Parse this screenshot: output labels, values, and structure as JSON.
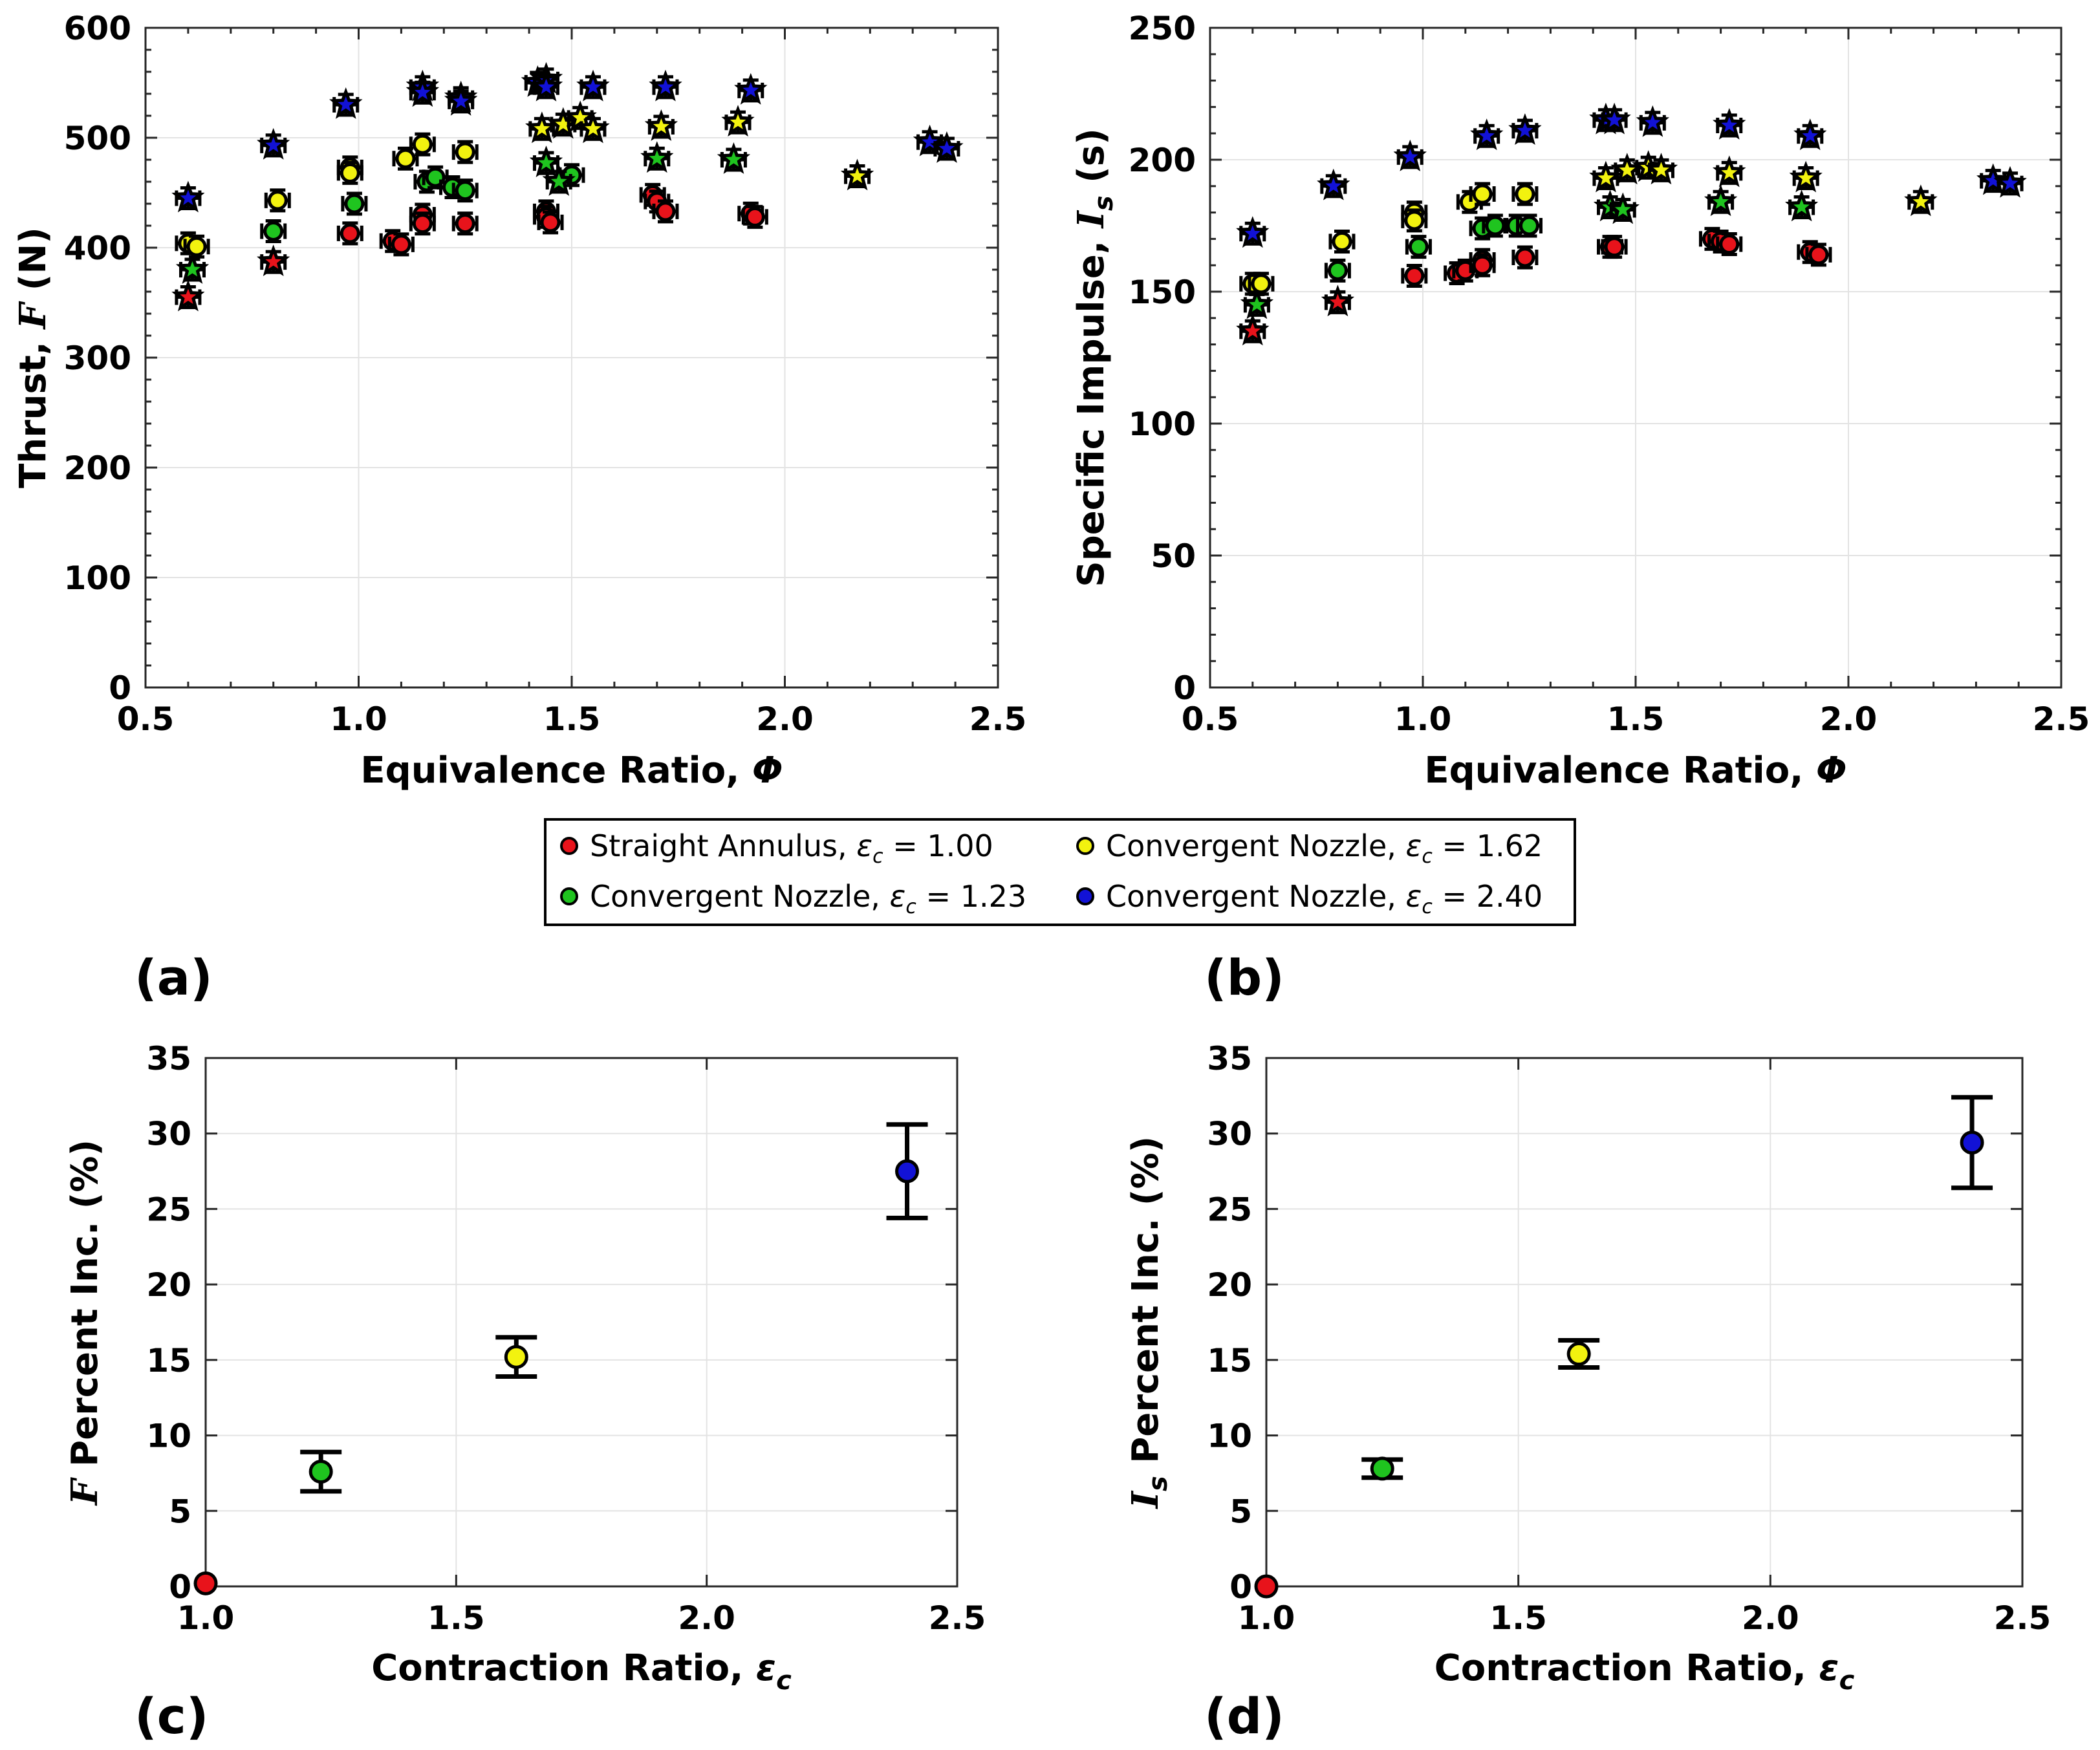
{
  "colors": {
    "straight": "#e8131b",
    "conv123": "#1fc41f",
    "conv162": "#f2f20f",
    "conv240": "#1212d6"
  },
  "legend": {
    "items": [
      {
        "key": "straight",
        "label": "Straight Annulus, ",
        "sym": "ε",
        "sub": "c",
        "value": " = 1.00"
      },
      {
        "key": "conv162",
        "label": "Convergent Nozzle, ",
        "sym": "ε",
        "sub": "c",
        "value": " = 1.62"
      },
      {
        "key": "conv123",
        "label": "Convergent Nozzle, ",
        "sym": "ε",
        "sub": "c",
        "value": " = 1.23"
      },
      {
        "key": "conv240",
        "label": "Convergent Nozzle, ",
        "sym": "ε",
        "sub": "c",
        "value": " = 2.40"
      }
    ]
  },
  "chart_data": [
    {
      "id": "a",
      "panel_label": "(a)",
      "type": "scatter",
      "xlabel": "Equivalence Ratio, ",
      "xlabel_sym": "Φ",
      "ylabel": "Thrust, ",
      "ylabel_sym": "F",
      "ylabel_unit": " (N)",
      "xlim": [
        0.5,
        2.5
      ],
      "ylim": [
        0,
        600
      ],
      "xticks": [
        "0.5",
        "1.0",
        "1.5",
        "2.0",
        "2.5"
      ],
      "yticks": [
        "0",
        "100",
        "200",
        "300",
        "400",
        "500",
        "600"
      ],
      "grid": true,
      "series": [
        {
          "key": "straight",
          "name": "Straight Annulus, εc = 1.00",
          "circles": [
            [
              0.98,
              413
            ],
            [
              1.08,
              406
            ],
            [
              1.1,
              403
            ],
            [
              1.15,
              430
            ],
            [
              1.15,
              422
            ],
            [
              1.25,
              422
            ],
            [
              1.44,
              433
            ],
            [
              1.44,
              428
            ],
            [
              1.45,
              423
            ],
            [
              1.69,
              448
            ],
            [
              1.7,
              442
            ],
            [
              1.72,
              433
            ],
            [
              1.92,
              431
            ],
            [
              1.93,
              428
            ]
          ],
          "stars": [
            [
              0.6,
              355
            ],
            [
              0.8,
              387
            ]
          ]
        },
        {
          "key": "conv123",
          "name": "Convergent Nozzle, εc = 1.23",
          "circles": [
            [
              0.8,
              415
            ],
            [
              0.99,
              440
            ],
            [
              1.16,
              460
            ],
            [
              1.18,
              464
            ],
            [
              1.22,
              455
            ],
            [
              1.25,
              452
            ],
            [
              1.5,
              466
            ]
          ],
          "stars": [
            [
              0.61,
              380
            ],
            [
              1.44,
              477
            ],
            [
              1.47,
              460
            ],
            [
              1.7,
              481
            ],
            [
              1.88,
              480
            ]
          ]
        },
        {
          "key": "conv162",
          "name": "Convergent Nozzle, εc = 1.62",
          "circles": [
            [
              0.6,
              404
            ],
            [
              0.62,
              401
            ],
            [
              0.81,
              443
            ],
            [
              0.98,
              473
            ],
            [
              0.98,
              468
            ],
            [
              1.11,
              481
            ],
            [
              1.15,
              494
            ],
            [
              1.25,
              487
            ]
          ],
          "stars": [
            [
              1.43,
              508
            ],
            [
              1.48,
              512
            ],
            [
              1.52,
              518
            ],
            [
              1.55,
              508
            ],
            [
              1.71,
              510
            ],
            [
              1.89,
              514
            ],
            [
              2.17,
              465
            ]
          ]
        },
        {
          "key": "conv240",
          "name": "Convergent Nozzle, εc = 2.40",
          "circles": [],
          "stars": [
            [
              0.6,
              445
            ],
            [
              0.8,
              493
            ],
            [
              0.97,
              530
            ],
            [
              1.15,
              546
            ],
            [
              1.15,
              541
            ],
            [
              1.24,
              536
            ],
            [
              1.24,
              533
            ],
            [
              1.42,
              550
            ],
            [
              1.44,
              553
            ],
            [
              1.44,
              546
            ],
            [
              1.55,
              546
            ],
            [
              1.72,
              546
            ],
            [
              1.92,
              543
            ],
            [
              2.34,
              496
            ],
            [
              2.38,
              490
            ]
          ]
        }
      ]
    },
    {
      "id": "b",
      "panel_label": "(b)",
      "type": "scatter",
      "xlabel": "Equivalence Ratio, ",
      "xlabel_sym": "Φ",
      "ylabel": "Specific Impulse, ",
      "ylabel_sym": "I",
      "ylabel_sub": "s",
      "ylabel_unit": " (s)",
      "xlim": [
        0.5,
        2.5
      ],
      "ylim": [
        0,
        250
      ],
      "xticks": [
        "0.5",
        "1.0",
        "1.5",
        "2.0",
        "2.5"
      ],
      "yticks": [
        "0",
        "50",
        "100",
        "150",
        "200",
        "250"
      ],
      "grid": true,
      "series": [
        {
          "key": "straight",
          "name": "Straight Annulus, εc = 1.00",
          "circles": [
            [
              0.98,
              156
            ],
            [
              1.08,
              157
            ],
            [
              1.1,
              158
            ],
            [
              1.14,
              162
            ],
            [
              1.14,
              160
            ],
            [
              1.24,
              163
            ],
            [
              1.44,
              167
            ],
            [
              1.45,
              167
            ],
            [
              1.68,
              170
            ],
            [
              1.7,
              169
            ],
            [
              1.72,
              168
            ],
            [
              1.91,
              165
            ],
            [
              1.93,
              164
            ]
          ],
          "stars": [
            [
              0.6,
              135
            ],
            [
              0.8,
              146
            ]
          ]
        },
        {
          "key": "conv123",
          "name": "Convergent Nozzle, εc = 1.23",
          "circles": [
            [
              0.8,
              158
            ],
            [
              0.99,
              167
            ],
            [
              1.14,
              174
            ],
            [
              1.17,
              175
            ],
            [
              1.22,
              175
            ],
            [
              1.25,
              175
            ]
          ],
          "stars": [
            [
              0.61,
              145
            ],
            [
              1.44,
              182
            ],
            [
              1.47,
              181
            ],
            [
              1.7,
              184
            ],
            [
              1.89,
              182
            ]
          ]
        },
        {
          "key": "conv162",
          "name": "Convergent Nozzle, εc = 1.62",
          "circles": [
            [
              0.6,
              153
            ],
            [
              0.62,
              153
            ],
            [
              0.81,
              169
            ],
            [
              0.98,
              180
            ],
            [
              0.98,
              177
            ],
            [
              1.11,
              184
            ],
            [
              1.14,
              187
            ],
            [
              1.24,
              187
            ]
          ],
          "stars": [
            [
              1.43,
              193
            ],
            [
              1.48,
              196
            ],
            [
              1.53,
              197
            ],
            [
              1.56,
              196
            ],
            [
              1.72,
              195
            ],
            [
              1.9,
              193
            ],
            [
              2.17,
              184
            ]
          ]
        },
        {
          "key": "conv240",
          "name": "Convergent Nozzle, εc = 2.40",
          "circles": [],
          "stars": [
            [
              0.6,
              172
            ],
            [
              0.79,
              190
            ],
            [
              0.97,
              201
            ],
            [
              1.15,
              209
            ],
            [
              1.24,
              211
            ],
            [
              1.43,
              215
            ],
            [
              1.45,
              215
            ],
            [
              1.54,
              214
            ],
            [
              1.72,
              213
            ],
            [
              1.91,
              209
            ],
            [
              2.34,
              192
            ],
            [
              2.38,
              191
            ]
          ]
        }
      ]
    },
    {
      "id": "c",
      "panel_label": "(c)",
      "type": "scatter",
      "xlabel": "Contraction Ratio, ",
      "xlabel_sym": "ε",
      "xlabel_sub": "c",
      "ylabel_sym": "F",
      "ylabel": " Percent Inc. (%)",
      "xlim": [
        1.0,
        2.5
      ],
      "ylim": [
        0,
        35
      ],
      "xticks": [
        "1.0",
        "1.5",
        "2.0",
        "2.5"
      ],
      "yticks": [
        "0",
        "5",
        "10",
        "15",
        "20",
        "25",
        "30",
        "35"
      ],
      "grid": true,
      "points": [
        {
          "key": "straight",
          "x": 1.0,
          "y": 0.2,
          "err": 0
        },
        {
          "key": "conv123",
          "x": 1.23,
          "y": 7.6,
          "err": 1.3
        },
        {
          "key": "conv162",
          "x": 1.62,
          "y": 15.2,
          "err": 1.3
        },
        {
          "key": "conv240",
          "x": 2.4,
          "y": 27.5,
          "err": 3.1
        }
      ]
    },
    {
      "id": "d",
      "panel_label": "(d)",
      "type": "scatter",
      "xlabel": "Contraction Ratio, ",
      "xlabel_sym": "ε",
      "xlabel_sub": "c",
      "ylabel_sym": "I",
      "ylabel_sub": "s",
      "ylabel": " Percent Inc. (%)",
      "xlim": [
        1.0,
        2.5
      ],
      "ylim": [
        0,
        35
      ],
      "xticks": [
        "1.0",
        "1.5",
        "2.0",
        "2.5"
      ],
      "yticks": [
        "0",
        "5",
        "10",
        "15",
        "20",
        "25",
        "30",
        "35"
      ],
      "grid": true,
      "points": [
        {
          "key": "straight",
          "x": 1.0,
          "y": 0.0,
          "err": 0
        },
        {
          "key": "conv123",
          "x": 1.23,
          "y": 7.8,
          "err": 0.6
        },
        {
          "key": "conv162",
          "x": 1.62,
          "y": 15.4,
          "err": 0.9
        },
        {
          "key": "conv240",
          "x": 2.4,
          "y": 29.4,
          "err": 3.0
        }
      ]
    }
  ]
}
